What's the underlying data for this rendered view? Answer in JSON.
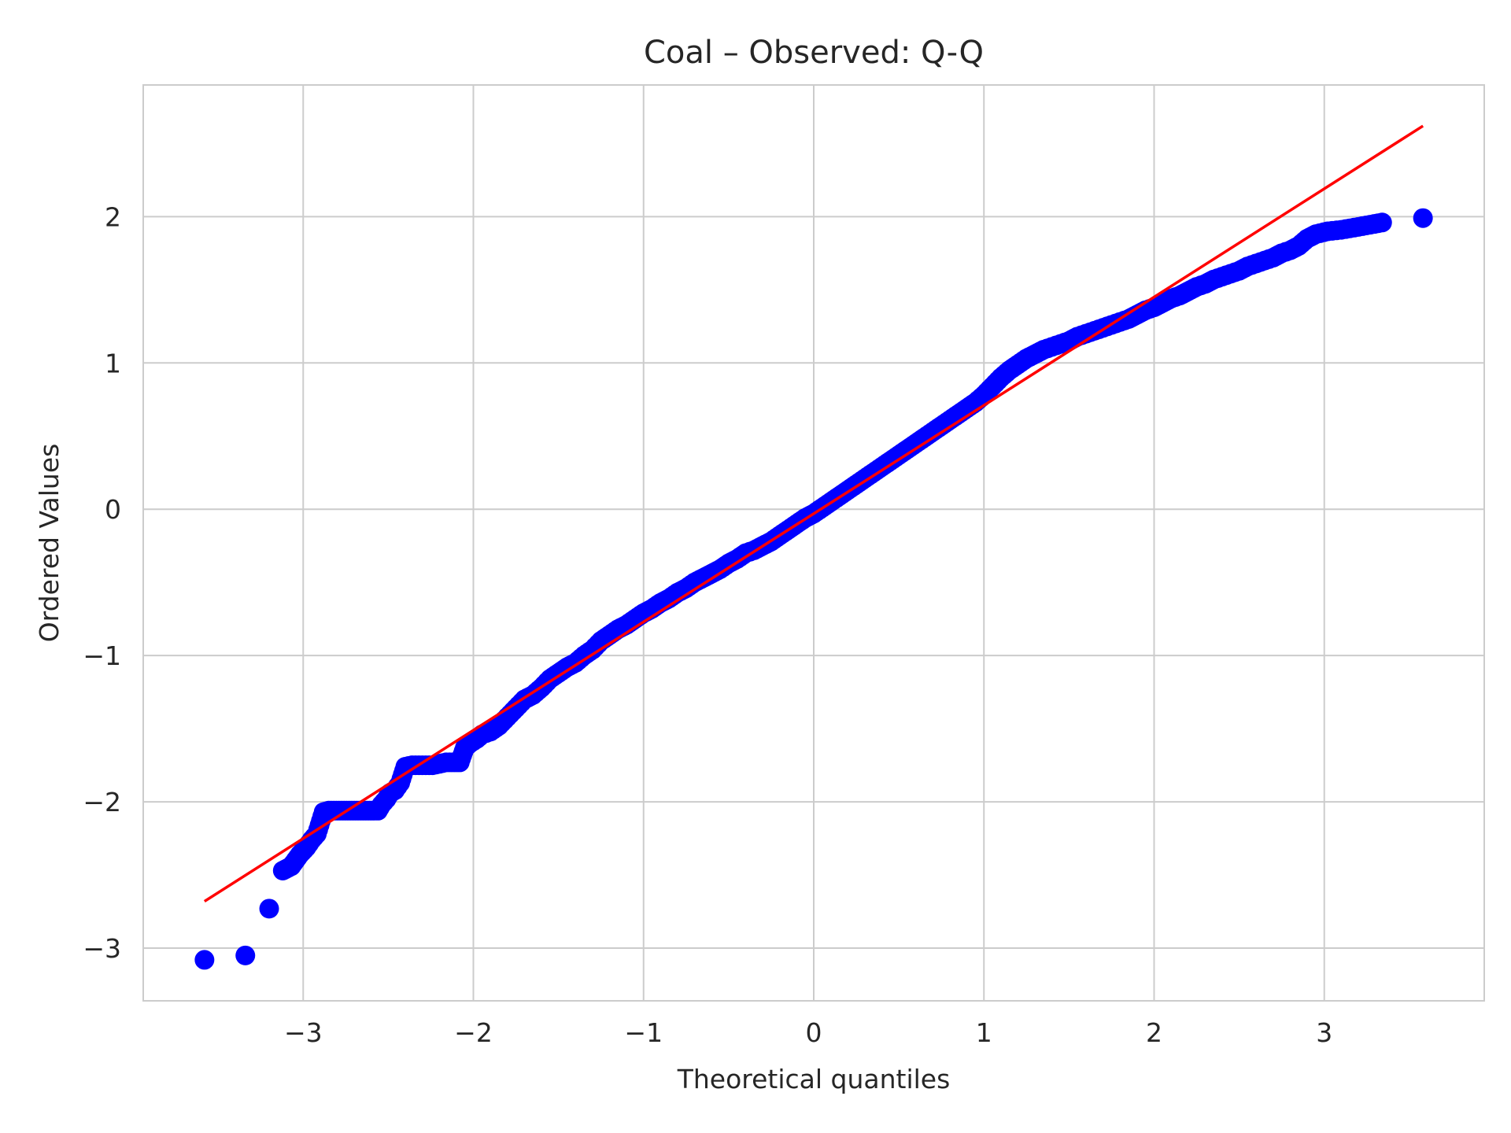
{
  "chart_data": {
    "type": "scatter",
    "title": "Coal – Observed: Q-Q",
    "xlabel": "Theoretical quantiles",
    "ylabel": "Ordered Values",
    "xlim": [
      -3.94,
      3.94
    ],
    "ylim": [
      -3.36,
      2.9
    ],
    "xticks": [
      -3,
      -2,
      -1,
      0,
      1,
      2,
      3
    ],
    "xtick_labels": [
      "−3",
      "−2",
      "−1",
      "0",
      "1",
      "2",
      "3"
    ],
    "yticks": [
      -3,
      -2,
      -1,
      0,
      1,
      2
    ],
    "ytick_labels": [
      "−3",
      "−2",
      "−1",
      "0",
      "1",
      "2"
    ],
    "grid": true,
    "colors": {
      "points": "#0000ff",
      "line": "#ff0000",
      "grid": "#cccccc",
      "frame": "#cccccc"
    },
    "fit_line": {
      "x": [
        -3.58,
        3.58
      ],
      "y": [
        -2.68,
        2.62
      ]
    },
    "points": {
      "x": [
        -3.58,
        -3.34,
        -3.2,
        -3.12,
        -3.07,
        -3.02,
        -2.98,
        -2.95,
        -2.92,
        -2.88,
        -2.85,
        -2.82,
        -2.79,
        -2.76,
        -2.73,
        -2.7,
        -2.67,
        -2.64,
        -2.61,
        -2.58,
        -2.56,
        -2.54,
        -2.51,
        -2.49,
        -2.46,
        -2.43,
        -2.4,
        -2.36,
        -2.32,
        -2.28,
        -2.24,
        -2.2,
        -2.16,
        -2.12,
        -2.08,
        -2.05,
        -2.02,
        -1.98,
        -1.95,
        -1.9,
        -1.85,
        -1.8,
        -1.75,
        -1.7,
        -1.65,
        -1.6,
        -1.55,
        -1.5,
        -1.45,
        -1.4,
        -1.35,
        -1.3,
        -1.25,
        -1.2,
        -1.15,
        -1.1,
        -1.05,
        -1.0,
        -0.95,
        -0.9,
        -0.85,
        -0.8,
        -0.75,
        -0.7,
        -0.65,
        -0.6,
        -0.55,
        -0.5,
        -0.45,
        -0.4,
        -0.35,
        -0.3,
        -0.25,
        -0.2,
        -0.15,
        -0.1,
        -0.05,
        0.0,
        0.05,
        0.1,
        0.15,
        0.2,
        0.25,
        0.3,
        0.35,
        0.4,
        0.45,
        0.5,
        0.55,
        0.6,
        0.65,
        0.7,
        0.75,
        0.8,
        0.85,
        0.9,
        0.95,
        1.0,
        1.05,
        1.1,
        1.15,
        1.2,
        1.25,
        1.3,
        1.35,
        1.4,
        1.45,
        1.5,
        1.55,
        1.6,
        1.65,
        1.7,
        1.75,
        1.8,
        1.85,
        1.9,
        1.95,
        2.0,
        2.05,
        2.1,
        2.15,
        2.2,
        2.25,
        2.3,
        2.35,
        2.4,
        2.45,
        2.5,
        2.55,
        2.6,
        2.65,
        2.7,
        2.75,
        2.8,
        2.85,
        2.9,
        2.95,
        3.02,
        3.1,
        3.2,
        3.34,
        3.58
      ],
      "y": [
        -3.08,
        -3.05,
        -2.73,
        -2.47,
        -2.44,
        -2.36,
        -2.31,
        -2.26,
        -2.22,
        -2.07,
        -2.06,
        -2.06,
        -2.06,
        -2.06,
        -2.06,
        -2.06,
        -2.06,
        -2.06,
        -2.06,
        -2.06,
        -2.06,
        -2.02,
        -1.98,
        -1.94,
        -1.92,
        -1.87,
        -1.76,
        -1.75,
        -1.75,
        -1.75,
        -1.75,
        -1.74,
        -1.73,
        -1.73,
        -1.73,
        -1.63,
        -1.6,
        -1.57,
        -1.54,
        -1.52,
        -1.48,
        -1.42,
        -1.36,
        -1.3,
        -1.27,
        -1.22,
        -1.16,
        -1.12,
        -1.08,
        -1.05,
        -1.0,
        -0.96,
        -0.9,
        -0.86,
        -0.82,
        -0.79,
        -0.75,
        -0.71,
        -0.68,
        -0.64,
        -0.61,
        -0.57,
        -0.54,
        -0.5,
        -0.47,
        -0.44,
        -0.41,
        -0.37,
        -0.34,
        -0.3,
        -0.28,
        -0.25,
        -0.22,
        -0.18,
        -0.14,
        -0.1,
        -0.06,
        -0.03,
        0.01,
        0.05,
        0.09,
        0.13,
        0.17,
        0.21,
        0.25,
        0.29,
        0.33,
        0.37,
        0.41,
        0.45,
        0.49,
        0.53,
        0.57,
        0.61,
        0.65,
        0.69,
        0.73,
        0.78,
        0.84,
        0.9,
        0.95,
        0.99,
        1.03,
        1.06,
        1.09,
        1.11,
        1.13,
        1.15,
        1.18,
        1.2,
        1.22,
        1.24,
        1.26,
        1.28,
        1.3,
        1.33,
        1.36,
        1.38,
        1.41,
        1.44,
        1.46,
        1.49,
        1.52,
        1.54,
        1.57,
        1.59,
        1.61,
        1.63,
        1.66,
        1.68,
        1.7,
        1.72,
        1.75,
        1.77,
        1.8,
        1.85,
        1.88,
        1.9,
        1.91,
        1.93,
        1.96,
        1.99
      ]
    }
  }
}
